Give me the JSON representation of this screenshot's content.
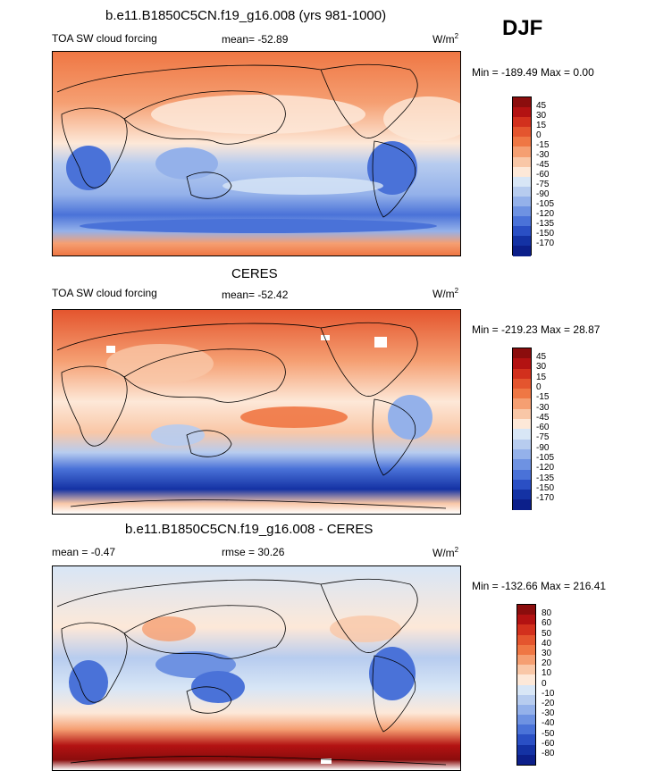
{
  "season": "DJF",
  "panels": [
    {
      "header": "b.e11.B1850C5CN.f19_g16.008 (yrs 981-1000)",
      "variable": "TOA SW cloud forcing",
      "stat": "mean= -52.89",
      "units": "W/m",
      "units_sup": "2",
      "minmax": "Min = -189.49 Max =   0.00",
      "colorbar_labels": [
        "45",
        "30",
        "15",
        "0",
        "-15",
        "-30",
        "-45",
        "-60",
        "-75",
        "-90",
        "-105",
        "-120",
        "-135",
        "-150",
        "-170"
      ],
      "colorbar_colors": [
        "#8b0d0d",
        "#b31212",
        "#d2301d",
        "#e4552e",
        "#ef7744",
        "#f59f72",
        "#f9c7a7",
        "#fde8d8",
        "#d8e6f6",
        "#b7ccef",
        "#94b1ea",
        "#6e92e2",
        "#4a72d8",
        "#2a4fc4",
        "#1432a4",
        "#0c1f8a"
      ]
    },
    {
      "header": "CERES",
      "variable": "TOA SW cloud forcing",
      "stat": "mean= -52.42",
      "units": "W/m",
      "units_sup": "2",
      "minmax": "Min = -219.23 Max = 28.87",
      "colorbar_labels": [
        "45",
        "30",
        "15",
        "0",
        "-15",
        "-30",
        "-45",
        "-60",
        "-75",
        "-90",
        "-105",
        "-120",
        "-135",
        "-150",
        "-170"
      ],
      "colorbar_colors": [
        "#8b0d0d",
        "#b31212",
        "#d2301d",
        "#e4552e",
        "#ef7744",
        "#f59f72",
        "#f9c7a7",
        "#fde8d8",
        "#d8e6f6",
        "#b7ccef",
        "#94b1ea",
        "#6e92e2",
        "#4a72d8",
        "#2a4fc4",
        "#1432a4",
        "#0c1f8a"
      ]
    },
    {
      "header": "b.e11.B1850C5CN.f19_g16.008 - CERES",
      "variable": "mean =  -0.47",
      "stat": "rmse =  30.26",
      "units": "W/m",
      "units_sup": "2",
      "minmax": "Min = -132.66 Max = 216.41",
      "colorbar_labels": [
        "80",
        "60",
        "50",
        "40",
        "30",
        "20",
        "10",
        "0",
        "-10",
        "-20",
        "-30",
        "-40",
        "-50",
        "-60",
        "-80"
      ],
      "colorbar_colors": [
        "#8b0d0d",
        "#b31212",
        "#d2301d",
        "#e4552e",
        "#ef7744",
        "#f59f72",
        "#f9c7a7",
        "#fde8d8",
        "#d8e6f6",
        "#b7ccef",
        "#94b1ea",
        "#6e92e2",
        "#4a72d8",
        "#2a4fc4",
        "#1432a4",
        "#0c1f8a"
      ]
    }
  ]
}
